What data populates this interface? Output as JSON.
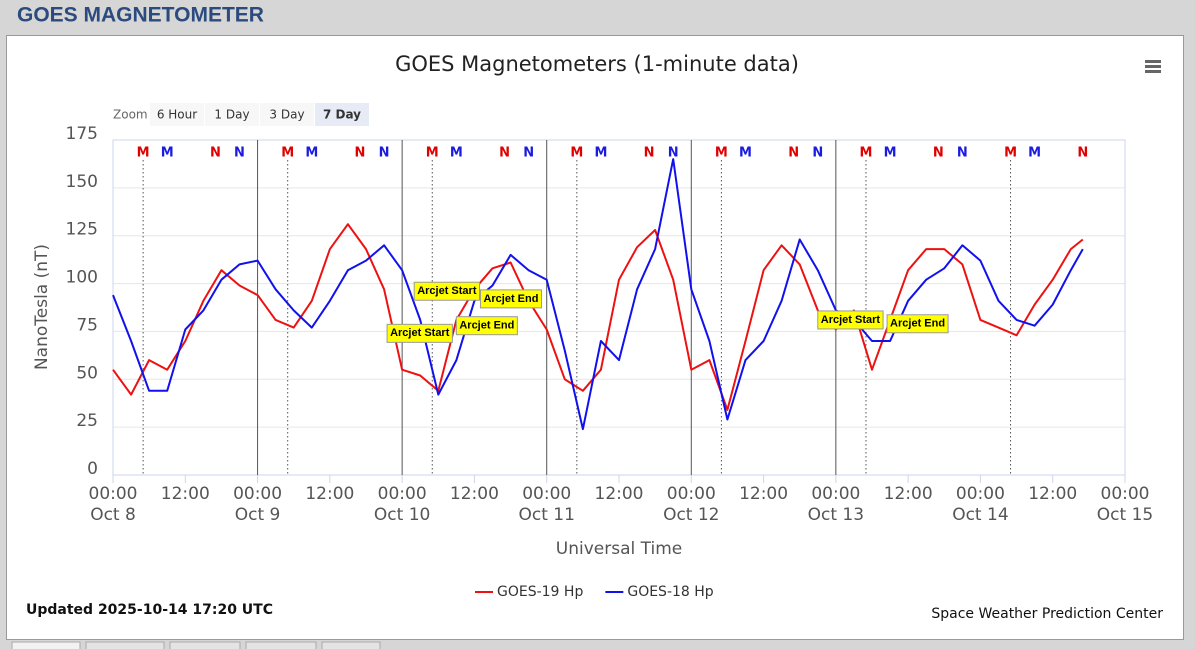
{
  "header": {
    "title": "GOES MAGNETOMETER"
  },
  "toolbar": {
    "label": "Zoom",
    "buttons": [
      "6 Hour",
      "1 Day",
      "3 Day",
      "7 Day"
    ],
    "active": 3
  },
  "chart_data": {
    "type": "line",
    "title": "GOES Magnetometers (1-minute data)",
    "x_label": "Universal Time",
    "y_label": "NanoTesla (nT)",
    "xlim": [
      0,
      168
    ],
    "ylim": [
      0,
      175
    ],
    "yticks": [
      0,
      25,
      50,
      75,
      100,
      125,
      150,
      175
    ],
    "xticks": [
      {
        "value": 0,
        "label": "00:00",
        "sublabel": "Oct 8"
      },
      {
        "value": 12,
        "label": "12:00"
      },
      {
        "value": 24,
        "label": "00:00",
        "sublabel": "Oct 9"
      },
      {
        "value": 36,
        "label": "12:00"
      },
      {
        "value": 48,
        "label": "00:00",
        "sublabel": "Oct 10"
      },
      {
        "value": 60,
        "label": "12:00"
      },
      {
        "value": 72,
        "label": "00:00",
        "sublabel": "Oct 11"
      },
      {
        "value": 84,
        "label": "12:00"
      },
      {
        "value": 96,
        "label": "00:00",
        "sublabel": "Oct 12"
      },
      {
        "value": 108,
        "label": "12:00"
      },
      {
        "value": 120,
        "label": "00:00",
        "sublabel": "Oct 13"
      },
      {
        "value": 132,
        "label": "12:00"
      },
      {
        "value": 144,
        "label": "00:00",
        "sublabel": "Oct 14"
      },
      {
        "value": 156,
        "label": "12:00"
      },
      {
        "value": 168,
        "label": "00:00",
        "sublabel": "Oct 15"
      }
    ],
    "grid": true,
    "x": [
      0,
      3,
      6,
      9,
      12,
      15,
      18,
      21,
      24,
      27,
      30,
      33,
      36,
      39,
      42,
      45,
      48,
      51,
      54,
      57,
      60,
      63,
      66,
      69,
      72,
      75,
      78,
      81,
      84,
      87,
      90,
      93,
      96,
      99,
      102,
      105,
      108,
      111,
      114,
      117,
      120,
      123,
      126,
      129,
      132,
      135,
      138,
      141,
      144,
      147,
      150,
      153,
      156,
      159,
      161
    ],
    "series": [
      {
        "name": "GOES-19 Hp",
        "color": "#ee1111",
        "values": [
          55,
          42,
          60,
          55,
          70,
          91,
          107,
          99,
          94,
          81,
          77,
          91,
          118,
          131,
          118,
          97,
          55,
          52,
          44,
          81,
          97,
          108,
          111,
          91,
          76,
          50,
          44,
          55,
          102,
          119,
          128,
          102,
          55,
          60,
          34,
          70,
          107,
          120,
          110,
          86,
          76,
          86,
          55,
          81,
          107,
          118,
          118,
          110,
          81,
          77,
          73,
          89,
          102,
          118,
          123
        ]
      },
      {
        "name": "GOES-18 Hp",
        "color": "#1111ee",
        "values": [
          94,
          70,
          44,
          44,
          76,
          86,
          102,
          110,
          112,
          97,
          86,
          77,
          91,
          107,
          112,
          120,
          107,
          81,
          42,
          60,
          91,
          99,
          115,
          107,
          102,
          65,
          24,
          70,
          60,
          97,
          118,
          165,
          97,
          70,
          29,
          60,
          70,
          91,
          123,
          107,
          86,
          81,
          70,
          70,
          91,
          102,
          108,
          120,
          112,
          91,
          81,
          78,
          89,
          107,
          118
        ]
      }
    ],
    "vlines": [
      24,
      48,
      72,
      96,
      120
    ],
    "dotted_lines": [
      5,
      29,
      53,
      77,
      101,
      125,
      149
    ],
    "markers": [
      {
        "label": "M",
        "x": 5,
        "color": "#e00000"
      },
      {
        "label": "M",
        "x": 9,
        "color": "#1a1ae0"
      },
      {
        "label": "N",
        "x": 17,
        "color": "#e00000"
      },
      {
        "label": "N",
        "x": 21,
        "color": "#1a1ae0"
      },
      {
        "label": "M",
        "x": 29,
        "color": "#e00000"
      },
      {
        "label": "M",
        "x": 33,
        "color": "#1a1ae0"
      },
      {
        "label": "N",
        "x": 41,
        "color": "#e00000"
      },
      {
        "label": "N",
        "x": 45,
        "color": "#1a1ae0"
      },
      {
        "label": "M",
        "x": 53,
        "color": "#e00000"
      },
      {
        "label": "M",
        "x": 57,
        "color": "#1a1ae0"
      },
      {
        "label": "N",
        "x": 65,
        "color": "#e00000"
      },
      {
        "label": "N",
        "x": 69,
        "color": "#1a1ae0"
      },
      {
        "label": "M",
        "x": 77,
        "color": "#e00000"
      },
      {
        "label": "M",
        "x": 81,
        "color": "#1a1ae0"
      },
      {
        "label": "N",
        "x": 89,
        "color": "#e00000"
      },
      {
        "label": "N",
        "x": 93,
        "color": "#1a1ae0"
      },
      {
        "label": "M",
        "x": 101,
        "color": "#e00000"
      },
      {
        "label": "M",
        "x": 105,
        "color": "#1a1ae0"
      },
      {
        "label": "N",
        "x": 113,
        "color": "#e00000"
      },
      {
        "label": "N",
        "x": 117,
        "color": "#1a1ae0"
      },
      {
        "label": "M",
        "x": 125,
        "color": "#e00000"
      },
      {
        "label": "M",
        "x": 129,
        "color": "#1a1ae0"
      },
      {
        "label": "N",
        "x": 137,
        "color": "#e00000"
      },
      {
        "label": "N",
        "x": 141,
        "color": "#1a1ae0"
      },
      {
        "label": "M",
        "x": 149,
        "color": "#e00000"
      },
      {
        "label": "M",
        "x": 153,
        "color": "#1a1ae0"
      },
      {
        "label": "N",
        "x": 161,
        "color": "#e00000"
      }
    ],
    "annotations": [
      {
        "text": "Arcjet Start",
        "x": 50,
        "y": 96
      },
      {
        "text": "Arcjet End",
        "x": 61,
        "y": 92
      },
      {
        "text": "Arcjet Start",
        "x": 45.5,
        "y": 74
      },
      {
        "text": "Arcjet End",
        "x": 57,
        "y": 78
      },
      {
        "text": "Arcjet Start",
        "x": 117,
        "y": 81
      },
      {
        "text": "Arcjet End",
        "x": 128.5,
        "y": 79
      }
    ],
    "updated": "Updated 2025-10-14 17:20 UTC",
    "credit": "Space Weather Prediction Center"
  }
}
